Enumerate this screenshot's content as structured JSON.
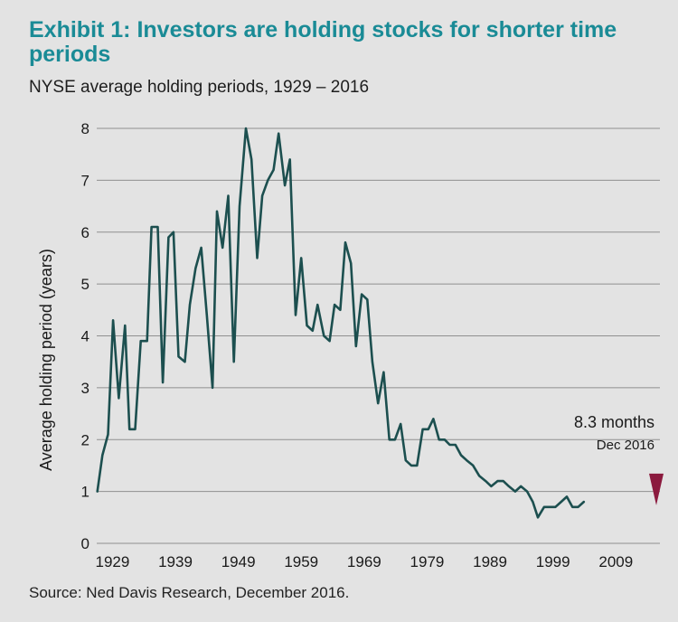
{
  "chart_data": {
    "type": "line",
    "title": "Exhibit 1: Investors are holding stocks for shorter time periods",
    "subtitle": "NYSE average holding periods, 1929 – 2016",
    "ylabel": "Average holding period (years)",
    "xlabel": "",
    "ylim": [
      0,
      8
    ],
    "xlim": [
      1926.5,
      2016
    ],
    "y_ticks": [
      "0",
      "1",
      "2",
      "3",
      "4",
      "5",
      "6",
      "7",
      "8"
    ],
    "x_ticks": [
      "1929",
      "1939",
      "1949",
      "1959",
      "1969",
      "1979",
      "1989",
      "1999",
      "2009"
    ],
    "grid": true,
    "source": "Source: Ned Davis Research, December 2016.",
    "annotation": {
      "text": "8.3 months",
      "subtext": "Dec 2016",
      "x": 2016,
      "y": 0.7,
      "color": "#8b1a3e"
    },
    "series": [
      {
        "color": "#1c4f4f",
        "points": [
          [
            1926.6,
            1.0
          ],
          [
            1927.4,
            1.7
          ],
          [
            1928.3,
            2.1
          ],
          [
            1929.1,
            4.3
          ],
          [
            1930.0,
            2.8
          ],
          [
            1931.0,
            4.2
          ],
          [
            1931.7,
            2.2
          ],
          [
            1932.6,
            2.2
          ],
          [
            1933.5,
            3.9
          ],
          [
            1934.5,
            3.9
          ],
          [
            1935.2,
            6.1
          ],
          [
            1936.2,
            6.1
          ],
          [
            1937.0,
            3.1
          ],
          [
            1937.9,
            5.9
          ],
          [
            1938.7,
            6.0
          ],
          [
            1939.5,
            3.6
          ],
          [
            1940.5,
            3.5
          ],
          [
            1941.3,
            4.6
          ],
          [
            1942.2,
            5.3
          ],
          [
            1943.1,
            5.7
          ],
          [
            1944.0,
            4.4
          ],
          [
            1944.9,
            3.0
          ],
          [
            1945.6,
            6.4
          ],
          [
            1946.5,
            5.7
          ],
          [
            1947.4,
            6.7
          ],
          [
            1948.3,
            3.5
          ],
          [
            1949.2,
            6.5
          ],
          [
            1950.2,
            8.0
          ],
          [
            1951.1,
            7.4
          ],
          [
            1952.0,
            5.5
          ],
          [
            1952.8,
            6.7
          ],
          [
            1953.7,
            7.0
          ],
          [
            1954.6,
            7.2
          ],
          [
            1955.4,
            7.9
          ],
          [
            1956.4,
            6.9
          ],
          [
            1957.2,
            7.4
          ],
          [
            1958.1,
            4.4
          ],
          [
            1959.0,
            5.5
          ],
          [
            1959.9,
            4.2
          ],
          [
            1960.8,
            4.1
          ],
          [
            1961.6,
            4.6
          ],
          [
            1962.6,
            4.0
          ],
          [
            1963.5,
            3.9
          ],
          [
            1964.3,
            4.6
          ],
          [
            1965.2,
            4.5
          ],
          [
            1966.0,
            5.8
          ],
          [
            1966.9,
            5.4
          ],
          [
            1967.7,
            3.8
          ],
          [
            1968.6,
            4.8
          ],
          [
            1969.5,
            4.7
          ],
          [
            1970.3,
            3.5
          ],
          [
            1971.2,
            2.7
          ],
          [
            1972.1,
            3.3
          ],
          [
            1973.0,
            2.0
          ],
          [
            1973.9,
            2.0
          ],
          [
            1974.8,
            2.3
          ],
          [
            1975.6,
            1.6
          ],
          [
            1976.5,
            1.5
          ],
          [
            1977.4,
            1.5
          ],
          [
            1978.3,
            2.2
          ],
          [
            1979.2,
            2.2
          ],
          [
            1980.0,
            2.4
          ],
          [
            1980.9,
            2.0
          ],
          [
            1981.8,
            2.0
          ],
          [
            1982.6,
            1.9
          ],
          [
            1983.5,
            1.9
          ],
          [
            1984.4,
            1.7
          ],
          [
            1985.3,
            1.6
          ],
          [
            1986.3,
            1.5
          ],
          [
            1987.3,
            1.3
          ],
          [
            1988.3,
            1.2
          ],
          [
            1989.2,
            1.1
          ],
          [
            1990.2,
            1.2
          ],
          [
            1991.1,
            1.2
          ],
          [
            1992.0,
            1.1
          ],
          [
            1993.0,
            1.0
          ],
          [
            1993.9,
            1.1
          ],
          [
            1994.9,
            1.0
          ],
          [
            1995.8,
            0.8
          ],
          [
            1996.6,
            0.5
          ],
          [
            1997.6,
            0.7
          ],
          [
            1998.5,
            0.7
          ],
          [
            1999.4,
            0.7
          ],
          [
            2000.3,
            0.8
          ],
          [
            2001.2,
            0.9
          ],
          [
            2002.1,
            0.7
          ],
          [
            2003.0,
            0.7
          ],
          [
            2003.9,
            0.8
          ]
        ]
      }
    ]
  }
}
